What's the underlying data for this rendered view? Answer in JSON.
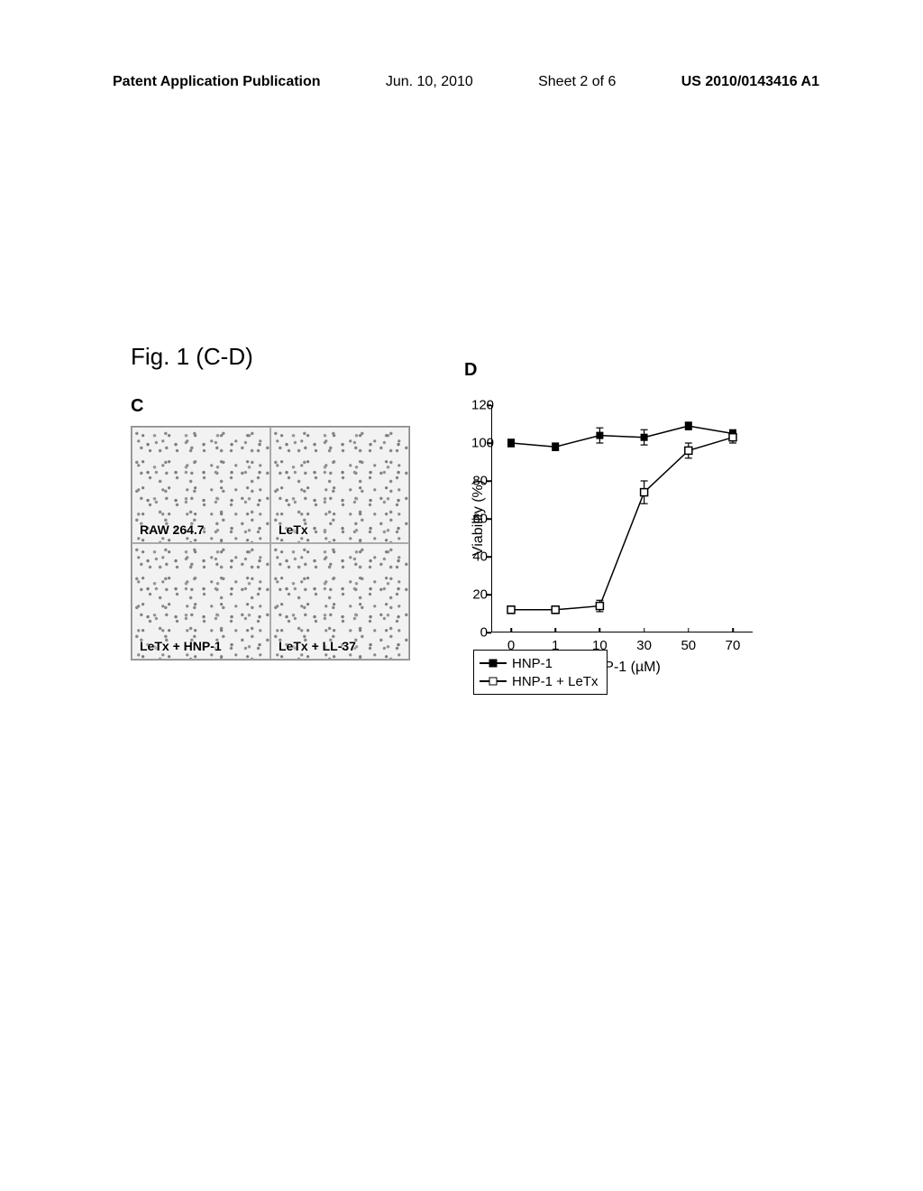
{
  "header": {
    "publication_label": "Patent Application Publication",
    "date": "Jun. 10, 2010",
    "sheet": "Sheet 2 of 6",
    "doc_number": "US 2010/0143416 A1"
  },
  "figure": {
    "label": "Fig. 1 (C-D)",
    "panel_c_letter": "C",
    "panel_d_letter": "D",
    "microscopy": {
      "cells": [
        {
          "label": "RAW 264.7"
        },
        {
          "label": "LeTx"
        },
        {
          "label": "LeTx + HNP-1"
        },
        {
          "label": "LeTx + LL-37"
        }
      ]
    },
    "chart": {
      "type": "line",
      "ylabel": "Viability (%)",
      "xlabel": "HNP-1 (µM)",
      "ylim": [
        0,
        120
      ],
      "ytick_step": 20,
      "yticks": [
        0,
        20,
        40,
        60,
        80,
        100,
        120
      ],
      "x_categories": [
        "0",
        "1",
        "10",
        "30",
        "50",
        "70"
      ],
      "series": [
        {
          "name": "HNP-1",
          "marker": "filled-square",
          "color": "#000000",
          "values": [
            100,
            98,
            104,
            103,
            109,
            105
          ],
          "error": [
            2,
            2,
            4,
            4,
            2,
            2
          ]
        },
        {
          "name": "HNP-1 + LeTx",
          "marker": "open-square",
          "color": "#000000",
          "values": [
            12,
            12,
            14,
            74,
            96,
            103
          ],
          "error": [
            2,
            2,
            3,
            6,
            4,
            3
          ]
        }
      ],
      "line_width": 1.5,
      "marker_size": 8,
      "background_color": "#ffffff",
      "axis_color": "#000000",
      "label_fontsize": 16,
      "tick_fontsize": 15
    },
    "legend": {
      "items": [
        {
          "marker": "filled-square",
          "label": "HNP-1"
        },
        {
          "marker": "open-square",
          "label": "HNP-1 + LeTx"
        }
      ]
    }
  }
}
